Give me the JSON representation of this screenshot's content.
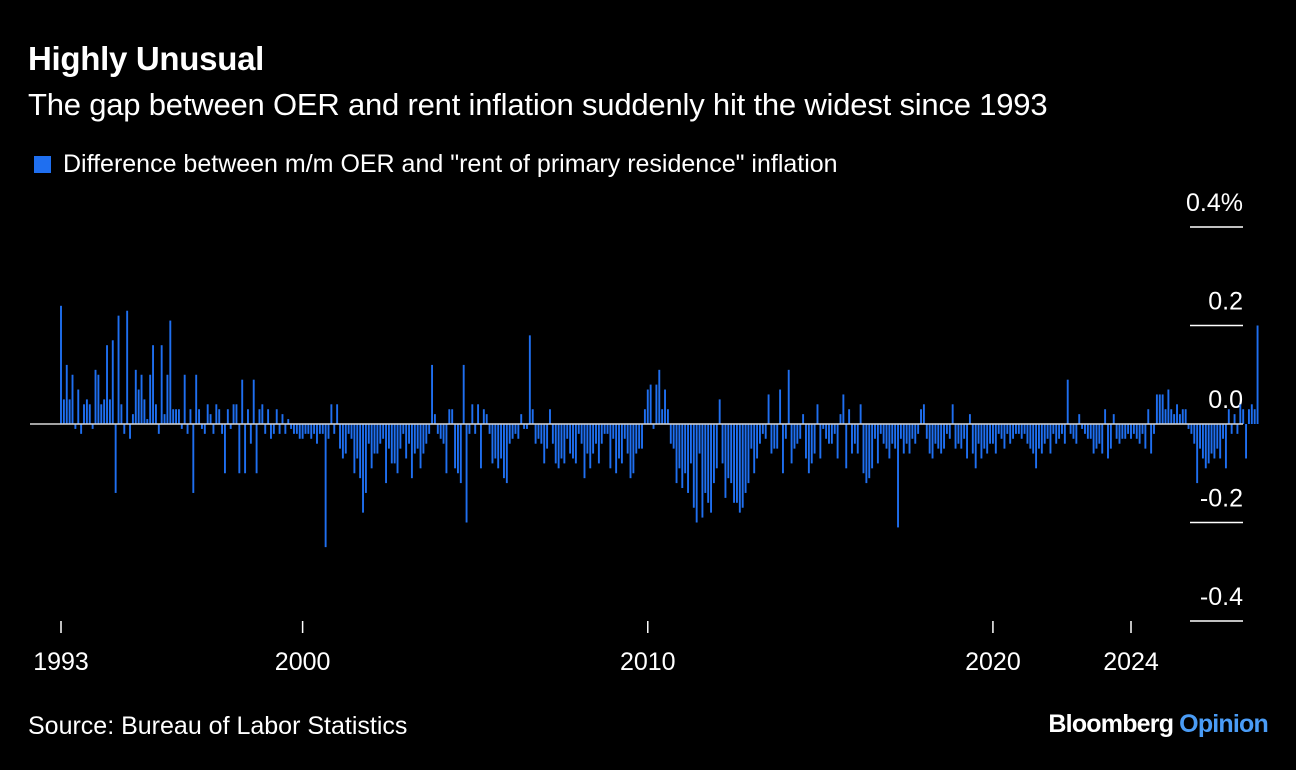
{
  "chart_data": {
    "type": "bar",
    "title": "Highly Unusual",
    "subtitle": "The gap between OER and rent inflation suddenly hit the widest since 1993",
    "legend": {
      "position": "top-left"
    },
    "series": [
      {
        "name": "Difference between m/m OER and \"rent of primary residence\" inflation",
        "color": "#1f6ff0",
        "x_start": "1993-01",
        "frequency": "monthly",
        "values": [
          0.24,
          0.05,
          0.12,
          0.05,
          0.1,
          -0.01,
          0.07,
          -0.02,
          0.04,
          0.05,
          0.04,
          -0.01,
          0.11,
          0.1,
          0.04,
          0.05,
          0.16,
          0.05,
          0.17,
          -0.14,
          0.22,
          0.04,
          -0.02,
          0.23,
          -0.03,
          0.02,
          0.11,
          0.07,
          0.1,
          0.05,
          0.01,
          0.1,
          0.16,
          0.04,
          -0.02,
          0.16,
          0.02,
          0.1,
          0.21,
          0.03,
          0.03,
          0.03,
          -0.01,
          0.1,
          -0.02,
          0.03,
          -0.14,
          0.1,
          0.03,
          -0.01,
          -0.02,
          0.04,
          0.02,
          -0.02,
          0.04,
          0.03,
          -0.02,
          -0.1,
          0.03,
          -0.01,
          0.04,
          0.04,
          -0.1,
          0.09,
          -0.1,
          0.03,
          -0.04,
          0.09,
          -0.1,
          0.03,
          0.04,
          -0.02,
          0.03,
          -0.03,
          -0.02,
          0.03,
          -0.02,
          0.02,
          -0.02,
          0.01,
          -0.01,
          -0.02,
          -0.02,
          -0.03,
          -0.03,
          -0.02,
          -0.02,
          -0.03,
          -0.02,
          -0.04,
          -0.02,
          -0.02,
          -0.25,
          -0.03,
          0.04,
          -0.02,
          0.04,
          -0.05,
          -0.07,
          -0.06,
          -0.02,
          -0.03,
          -0.1,
          -0.07,
          -0.11,
          -0.18,
          -0.14,
          -0.04,
          -0.09,
          -0.06,
          -0.06,
          -0.04,
          -0.03,
          -0.12,
          -0.05,
          -0.08,
          -0.08,
          -0.1,
          -0.05,
          -0.02,
          -0.07,
          -0.04,
          -0.11,
          -0.06,
          -0.05,
          -0.09,
          -0.06,
          -0.04,
          -0.02,
          0.12,
          0.02,
          -0.02,
          -0.03,
          -0.04,
          -0.1,
          0.03,
          0.03,
          -0.09,
          -0.1,
          -0.12,
          0.12,
          -0.2,
          -0.02,
          0.04,
          -0.02,
          0.04,
          -0.09,
          0.03,
          0.02,
          -0.02,
          -0.08,
          -0.07,
          -0.09,
          -0.07,
          -0.11,
          -0.12,
          -0.04,
          -0.03,
          -0.02,
          -0.03,
          0.02,
          -0.01,
          -0.01,
          0.18,
          0.03,
          -0.04,
          -0.03,
          -0.04,
          -0.08,
          -0.05,
          0.03,
          -0.04,
          -0.08,
          -0.09,
          -0.07,
          -0.08,
          -0.03,
          -0.06,
          -0.07,
          -0.08,
          -0.02,
          -0.04,
          -0.11,
          -0.06,
          -0.09,
          -0.06,
          -0.04,
          -0.08,
          -0.04,
          -0.02,
          -0.02,
          -0.09,
          -0.03,
          -0.1,
          -0.07,
          -0.08,
          -0.03,
          -0.06,
          -0.11,
          -0.1,
          -0.06,
          -0.05,
          -0.05,
          0.03,
          0.07,
          0.08,
          -0.01,
          0.08,
          0.11,
          0.03,
          0.07,
          0.03,
          -0.04,
          -0.05,
          -0.12,
          -0.09,
          -0.13,
          -0.1,
          -0.14,
          -0.08,
          -0.17,
          -0.2,
          -0.06,
          -0.19,
          -0.14,
          -0.16,
          -0.18,
          -0.12,
          -0.09,
          0.05,
          -0.08,
          -0.15,
          -0.11,
          -0.12,
          -0.16,
          -0.16,
          -0.18,
          -0.17,
          -0.14,
          -0.12,
          -0.05,
          -0.1,
          -0.07,
          -0.04,
          -0.02,
          -0.03,
          0.06,
          -0.06,
          -0.05,
          -0.05,
          0.07,
          -0.1,
          -0.03,
          0.11,
          -0.08,
          -0.05,
          -0.04,
          -0.03,
          0.02,
          -0.07,
          -0.1,
          -0.08,
          -0.06,
          0.04,
          -0.07,
          -0.01,
          -0.03,
          -0.04,
          -0.04,
          -0.02,
          -0.07,
          0.02,
          0.06,
          -0.09,
          0.03,
          -0.06,
          -0.04,
          -0.06,
          0.04,
          -0.1,
          -0.12,
          -0.11,
          -0.09,
          -0.03,
          -0.08,
          -0.02,
          -0.04,
          -0.05,
          -0.07,
          -0.04,
          -0.05,
          -0.21,
          -0.03,
          -0.06,
          -0.04,
          -0.06,
          -0.03,
          -0.04,
          -0.02,
          0.03,
          0.04,
          -0.03,
          -0.06,
          -0.07,
          -0.04,
          -0.05,
          -0.06,
          -0.05,
          -0.02,
          -0.03,
          0.04,
          -0.05,
          -0.04,
          -0.05,
          -0.03,
          -0.07,
          0.02,
          -0.06,
          -0.09,
          -0.04,
          -0.07,
          -0.05,
          -0.06,
          -0.04,
          -0.04,
          -0.06,
          -0.02,
          -0.03,
          -0.05,
          -0.02,
          -0.04,
          -0.03,
          -0.02,
          -0.02,
          -0.03,
          -0.02,
          -0.04,
          -0.05,
          -0.06,
          -0.09,
          -0.05,
          -0.06,
          -0.04,
          -0.03,
          -0.06,
          -0.02,
          -0.04,
          -0.03,
          -0.02,
          -0.04,
          0.09,
          -0.02,
          -0.03,
          -0.04,
          0.02,
          -0.01,
          -0.02,
          -0.03,
          -0.03,
          -0.06,
          -0.05,
          -0.04,
          -0.06,
          0.03,
          -0.07,
          -0.05,
          0.02,
          -0.03,
          -0.04,
          -0.03,
          -0.03,
          -0.02,
          -0.03,
          -0.02,
          -0.03,
          -0.04,
          -0.02,
          -0.05,
          0.03,
          -0.06,
          -0.02,
          0.06,
          0.06,
          0.06,
          0.03,
          0.07,
          0.03,
          0.02,
          0.04,
          0.02,
          0.03,
          0.03,
          -0.01,
          -0.02,
          -0.04,
          -0.12,
          -0.05,
          -0.07,
          -0.09,
          -0.08,
          -0.06,
          -0.07,
          -0.05,
          -0.07,
          -0.03,
          -0.09,
          0.03,
          -0.02,
          0.02,
          -0.02,
          0.04,
          0.03,
          -0.07,
          0.03,
          0.04,
          0.03,
          0.2
        ]
      }
    ],
    "xlim": [
      "1993-01",
      "2024-07"
    ],
    "x_ticks": [
      "1993",
      "2000",
      "2010",
      "2020",
      "2024"
    ],
    "ylim": [
      -0.4,
      0.4
    ],
    "y_ticks": [
      {
        "value": 0.4,
        "label": "0.4%"
      },
      {
        "value": 0.2,
        "label": "0.2"
      },
      {
        "value": 0.0,
        "label": "0.0"
      },
      {
        "value": -0.2,
        "label": "-0.2"
      },
      {
        "value": -0.4,
        "label": "-0.4"
      }
    ],
    "xlabel": "",
    "ylabel": "",
    "grid": false,
    "zero_line": true
  },
  "footer": {
    "source": "Source: Bureau of Labor Statistics",
    "brand": "Bloomberg",
    "brand_suffix": "Opinion",
    "brand_suffix_color": "#4a9cf6"
  }
}
